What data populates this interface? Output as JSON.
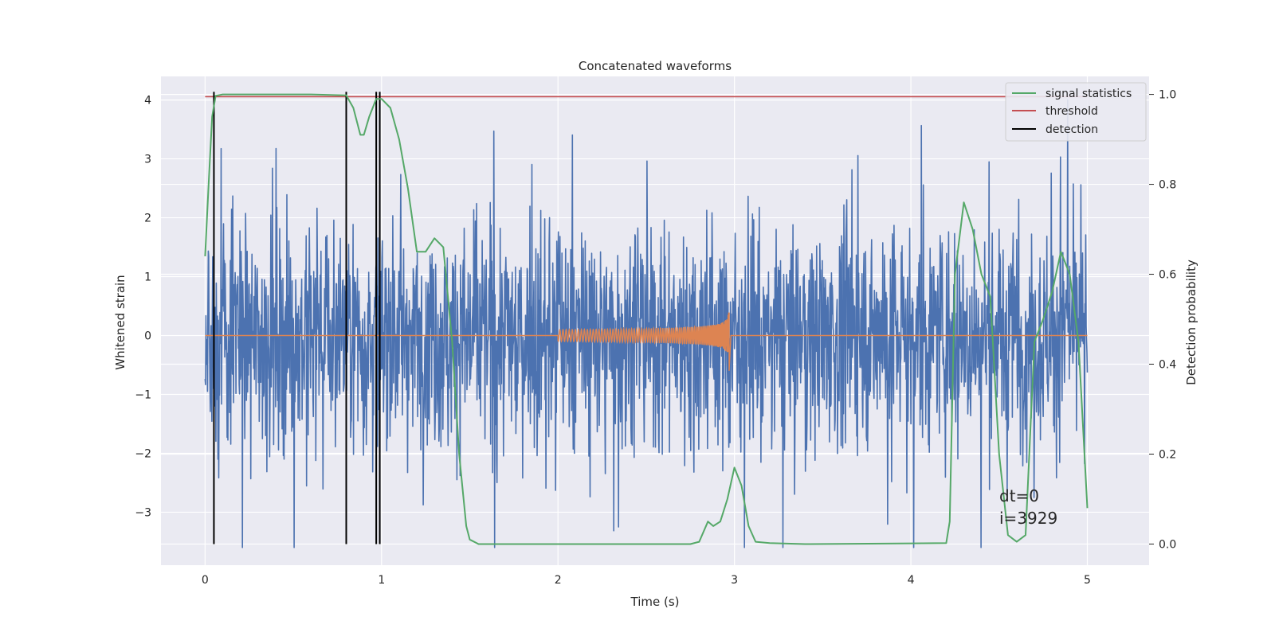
{
  "chart_data": {
    "type": "line",
    "title": "Concatenated waveforms",
    "xlabel": "Time (s)",
    "ylabel": "Whitened strain",
    "ylabel_right": "Detection probability",
    "xlim": [
      -0.25,
      5.35
    ],
    "ylim": [
      -3.9,
      4.4
    ],
    "ylim_right": [
      -0.047,
      1.04
    ],
    "x_ticks": [
      0,
      1,
      2,
      3,
      4,
      5
    ],
    "x_tick_labels": [
      "0",
      "1",
      "2",
      "3",
      "4",
      "5"
    ],
    "y_ticks": [
      4,
      3,
      2,
      1,
      0,
      -1,
      -2,
      -3
    ],
    "y_tick_labels": [
      "4",
      "3",
      "2",
      "1",
      "0",
      "−1",
      "−2",
      "−3"
    ],
    "y2_ticks": [
      1.0,
      0.8,
      0.6,
      0.4,
      0.2,
      0.0
    ],
    "y2_tick_labels": [
      "1.0",
      "0.8",
      "0.6",
      "0.4",
      "0.2",
      "0.0"
    ],
    "grid": true,
    "legend_position": "top-right",
    "legend": [
      {
        "label": "signal statistics",
        "color": "#55a868"
      },
      {
        "label": "threshold",
        "color": "#c44e52"
      },
      {
        "label": "detection",
        "color": "#000000"
      }
    ],
    "series": [
      {
        "role": "noisy strain",
        "color": "#4c72b0",
        "axis": "left",
        "x_range": [
          0,
          5
        ],
        "amplitude_range": [
          -3.6,
          4.0
        ]
      },
      {
        "role": "injected chirp",
        "color": "#dd8452",
        "axis": "left",
        "x_range": [
          2.0,
          2.97
        ],
        "peak_amplitude": 0.45
      },
      {
        "name": "signal statistics",
        "color": "#55a868",
        "axis": "right",
        "x": [
          0,
          0.02,
          0.04,
          0.06,
          0.1,
          0.3,
          0.6,
          0.8,
          0.84,
          0.88,
          0.9,
          0.93,
          0.97,
          1.0,
          1.05,
          1.1,
          1.15,
          1.2,
          1.25,
          1.3,
          1.35,
          1.4,
          1.44,
          1.48,
          1.5,
          1.55,
          1.6,
          2.0,
          2.5,
          2.75,
          2.8,
          2.85,
          2.88,
          2.92,
          2.96,
          3.0,
          3.04,
          3.08,
          3.12,
          3.2,
          3.4,
          4.2,
          4.22,
          4.25,
          4.3,
          4.35,
          4.4,
          4.45,
          4.5,
          4.55,
          4.6,
          4.65,
          4.7,
          4.75,
          4.8,
          4.85,
          4.9,
          4.95,
          5.0
        ],
        "y": [
          0.64,
          0.8,
          0.95,
          0.997,
          1.0,
          1.0,
          1.0,
          0.998,
          0.97,
          0.91,
          0.91,
          0.95,
          0.99,
          0.99,
          0.97,
          0.9,
          0.79,
          0.65,
          0.65,
          0.68,
          0.66,
          0.45,
          0.2,
          0.04,
          0.01,
          0.0,
          0.0,
          0.0,
          0.0,
          0.0,
          0.005,
          0.05,
          0.04,
          0.05,
          0.1,
          0.17,
          0.13,
          0.04,
          0.005,
          0.002,
          0.0,
          0.002,
          0.05,
          0.6,
          0.76,
          0.7,
          0.6,
          0.55,
          0.2,
          0.02,
          0.005,
          0.02,
          0.45,
          0.5,
          0.56,
          0.65,
          0.6,
          0.45,
          0.08
        ]
      },
      {
        "name": "threshold",
        "color": "#c44e52",
        "axis": "right",
        "x": [
          0,
          5
        ],
        "y": [
          0.995,
          0.995
        ]
      }
    ],
    "detections": [
      0.05,
      0.8,
      0.97,
      0.99
    ],
    "annotation": [
      "dt=0",
      "i=3929"
    ],
    "colors": {
      "background": "#eaeaf2",
      "grid": "#ffffff"
    }
  }
}
